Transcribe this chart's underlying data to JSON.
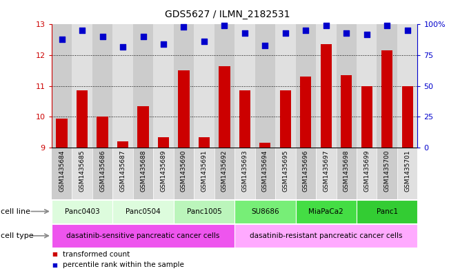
{
  "title": "GDS5627 / ILMN_2182531",
  "samples": [
    "GSM1435684",
    "GSM1435685",
    "GSM1435686",
    "GSM1435687",
    "GSM1435688",
    "GSM1435689",
    "GSM1435690",
    "GSM1435691",
    "GSM1435692",
    "GSM1435693",
    "GSM1435694",
    "GSM1435695",
    "GSM1435696",
    "GSM1435697",
    "GSM1435698",
    "GSM1435699",
    "GSM1435700",
    "GSM1435701"
  ],
  "transformed_count": [
    9.95,
    10.85,
    10.02,
    9.2,
    10.35,
    9.35,
    11.5,
    9.35,
    11.65,
    10.85,
    9.15,
    10.85,
    11.3,
    12.35,
    11.35,
    11.0,
    12.15,
    11.0
  ],
  "percentile_rank": [
    88,
    95,
    90,
    82,
    90,
    84,
    98,
    86,
    99,
    93,
    83,
    93,
    95,
    99,
    93,
    92,
    99,
    95
  ],
  "bar_color": "#cc0000",
  "dot_color": "#0000cc",
  "ylim_left": [
    9,
    13
  ],
  "ylim_right": [
    0,
    100
  ],
  "yticks_left": [
    9,
    10,
    11,
    12,
    13
  ],
  "yticks_right": [
    0,
    25,
    50,
    75,
    100
  ],
  "ytick_labels_right": [
    "0",
    "25",
    "50",
    "75",
    "100%"
  ],
  "cell_lines": [
    {
      "label": "Panc0403",
      "start": 0,
      "end": 2,
      "color": "#ddfcdd"
    },
    {
      "label": "Panc0504",
      "start": 3,
      "end": 5,
      "color": "#ddfcdd"
    },
    {
      "label": "Panc1005",
      "start": 6,
      "end": 8,
      "color": "#bbf5bb"
    },
    {
      "label": "SU8686",
      "start": 9,
      "end": 11,
      "color": "#77ee77"
    },
    {
      "label": "MiaPaCa2",
      "start": 12,
      "end": 14,
      "color": "#44dd44"
    },
    {
      "label": "Panc1",
      "start": 15,
      "end": 17,
      "color": "#33cc33"
    }
  ],
  "cell_types": [
    {
      "label": "dasatinib-sensitive pancreatic cancer cells",
      "start": 0,
      "end": 8,
      "color": "#ee55ee"
    },
    {
      "label": "dasatinib-resistant pancreatic cancer cells",
      "start": 9,
      "end": 17,
      "color": "#ffaaff"
    }
  ],
  "legend_items": [
    {
      "color": "#cc0000",
      "label": "transformed count"
    },
    {
      "color": "#0000cc",
      "label": "percentile rank within the sample"
    }
  ],
  "bar_width": 0.55,
  "dot_size": 28,
  "background_color": "#ffffff",
  "col_colors": [
    "#cccccc",
    "#e0e0e0"
  ],
  "label_fontsize": 6.5,
  "title_fontsize": 10
}
